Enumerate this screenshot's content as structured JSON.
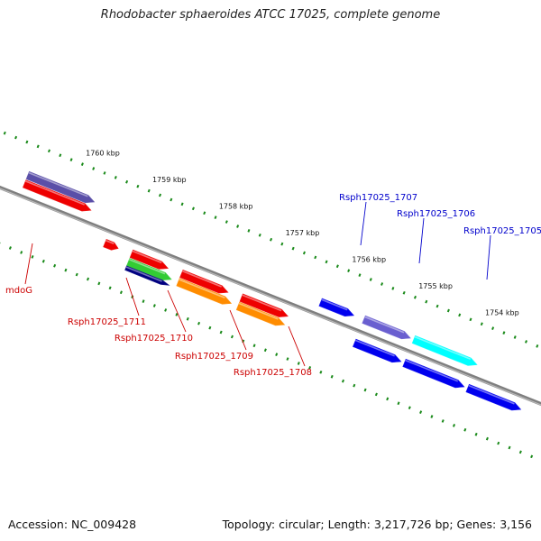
{
  "title": "Rhodobacter sphaeroides ATCC 17025, complete genome",
  "accession": "Accession: NC_009428",
  "topology": "Topology: circular; Length: 3,217,726 bp; Genes: 3,156",
  "colors": {
    "backbone": "#7f7f7f",
    "ticks": "#1a8a1a",
    "label_red": "#cc0000",
    "label_blue": "#0000cc"
  },
  "scale": {
    "labels": [
      {
        "kbp": 1760,
        "text": "1760 kbp"
      },
      {
        "kbp": 1759,
        "text": "1759 kbp"
      },
      {
        "kbp": 1758,
        "text": "1758 kbp"
      },
      {
        "kbp": 1757,
        "text": "1757 kbp"
      },
      {
        "kbp": 1756,
        "text": "1756 kbp"
      },
      {
        "kbp": 1755,
        "text": "1755 kbp"
      },
      {
        "kbp": 1754,
        "text": "1754 kbp"
      }
    ]
  },
  "features": [
    {
      "id": "f1",
      "name": "mdoG",
      "label": "mdoG",
      "strand": "-",
      "track": 1,
      "start_kbp": 1760.6,
      "end_kbp": 1759.6,
      "color": "#ee0000",
      "label_color": "#cc0000"
    },
    {
      "id": "f2",
      "name": "mdoG-cds",
      "strand": "-",
      "track": 2,
      "start_kbp": 1760.6,
      "end_kbp": 1759.6,
      "color": "#5a4fa8"
    },
    {
      "id": "f3",
      "name": "Rsph17025_1711",
      "label": "Rsph17025_1711",
      "strand": "+",
      "track": 1,
      "start_kbp": 1759.25,
      "end_kbp": 1759.05,
      "color": "#ee0000",
      "label_color": "#cc0000"
    },
    {
      "id": "f4",
      "name": "Rsph17025_1710",
      "label": "Rsph17025_1710",
      "strand": "+",
      "track": 1,
      "start_kbp": 1758.85,
      "end_kbp": 1758.3,
      "color": "#ee0000",
      "label_color": "#cc0000"
    },
    {
      "id": "f5",
      "name": "Rsph17025_1710-rna",
      "strand": "+",
      "track": 2,
      "start_kbp": 1758.85,
      "end_kbp": 1758.2,
      "color": "#33cc33"
    },
    {
      "id": "f6",
      "name": "Rsph17025_1710-cds",
      "strand": "+",
      "track": 3,
      "start_kbp": 1758.85,
      "end_kbp": 1758.2,
      "color": "#000080"
    },
    {
      "id": "f7",
      "name": "Rsph17025_1709",
      "label": "Rsph17025_1709",
      "strand": "+",
      "track": 1,
      "start_kbp": 1758.1,
      "end_kbp": 1757.4,
      "color": "#ee0000",
      "label_color": "#cc0000"
    },
    {
      "id": "f8",
      "name": "Rsph17025_1709-cds",
      "strand": "+",
      "track": 2,
      "start_kbp": 1758.1,
      "end_kbp": 1757.3,
      "color": "#ff8c00"
    },
    {
      "id": "f9",
      "name": "Rsph17025_1708",
      "label": "Rsph17025_1708",
      "strand": "+",
      "track": 1,
      "start_kbp": 1757.2,
      "end_kbp": 1756.5,
      "color": "#ee0000",
      "label_color": "#cc0000"
    },
    {
      "id": "f10",
      "name": "Rsph17025_1708-cds",
      "strand": "+",
      "track": 2,
      "start_kbp": 1757.2,
      "end_kbp": 1756.5,
      "color": "#ff8c00"
    },
    {
      "id": "f11",
      "name": "Rsph17025_1707",
      "label": "Rsph17025_1707",
      "strand": "-",
      "track": 1,
      "start_kbp": 1756.15,
      "end_kbp": 1755.65,
      "color": "#0000ee",
      "label_color": "#0000cc"
    },
    {
      "id": "f12",
      "name": "Rsph17025_1706",
      "label": "Rsph17025_1706",
      "strand": "-",
      "track": 1,
      "start_kbp": 1755.5,
      "end_kbp": 1754.8,
      "color": "#6a5fd0",
      "label_color": "#0000cc"
    },
    {
      "id": "f13",
      "name": "Rsph17025_1706-cds",
      "strand": "+",
      "track": 1,
      "start_kbp": 1755.5,
      "end_kbp": 1754.8,
      "color": "#0000ee"
    },
    {
      "id": "f14",
      "name": "Rsph17025_1705",
      "label": "Rsph17025_1705",
      "strand": "-",
      "track": 1,
      "start_kbp": 1754.75,
      "end_kbp": 1753.8,
      "color": "#00ffff",
      "label_color": "#0000cc"
    },
    {
      "id": "f15",
      "name": "Rsph17025_1705-cds",
      "strand": "+",
      "track": 1,
      "start_kbp": 1754.75,
      "end_kbp": 1753.85,
      "color": "#0000ee"
    },
    {
      "id": "f16",
      "name": "Rsph17025_1704-cds",
      "strand": "+",
      "track": 1,
      "start_kbp": 1753.8,
      "end_kbp": 1753.0,
      "color": "#0000ee"
    }
  ]
}
